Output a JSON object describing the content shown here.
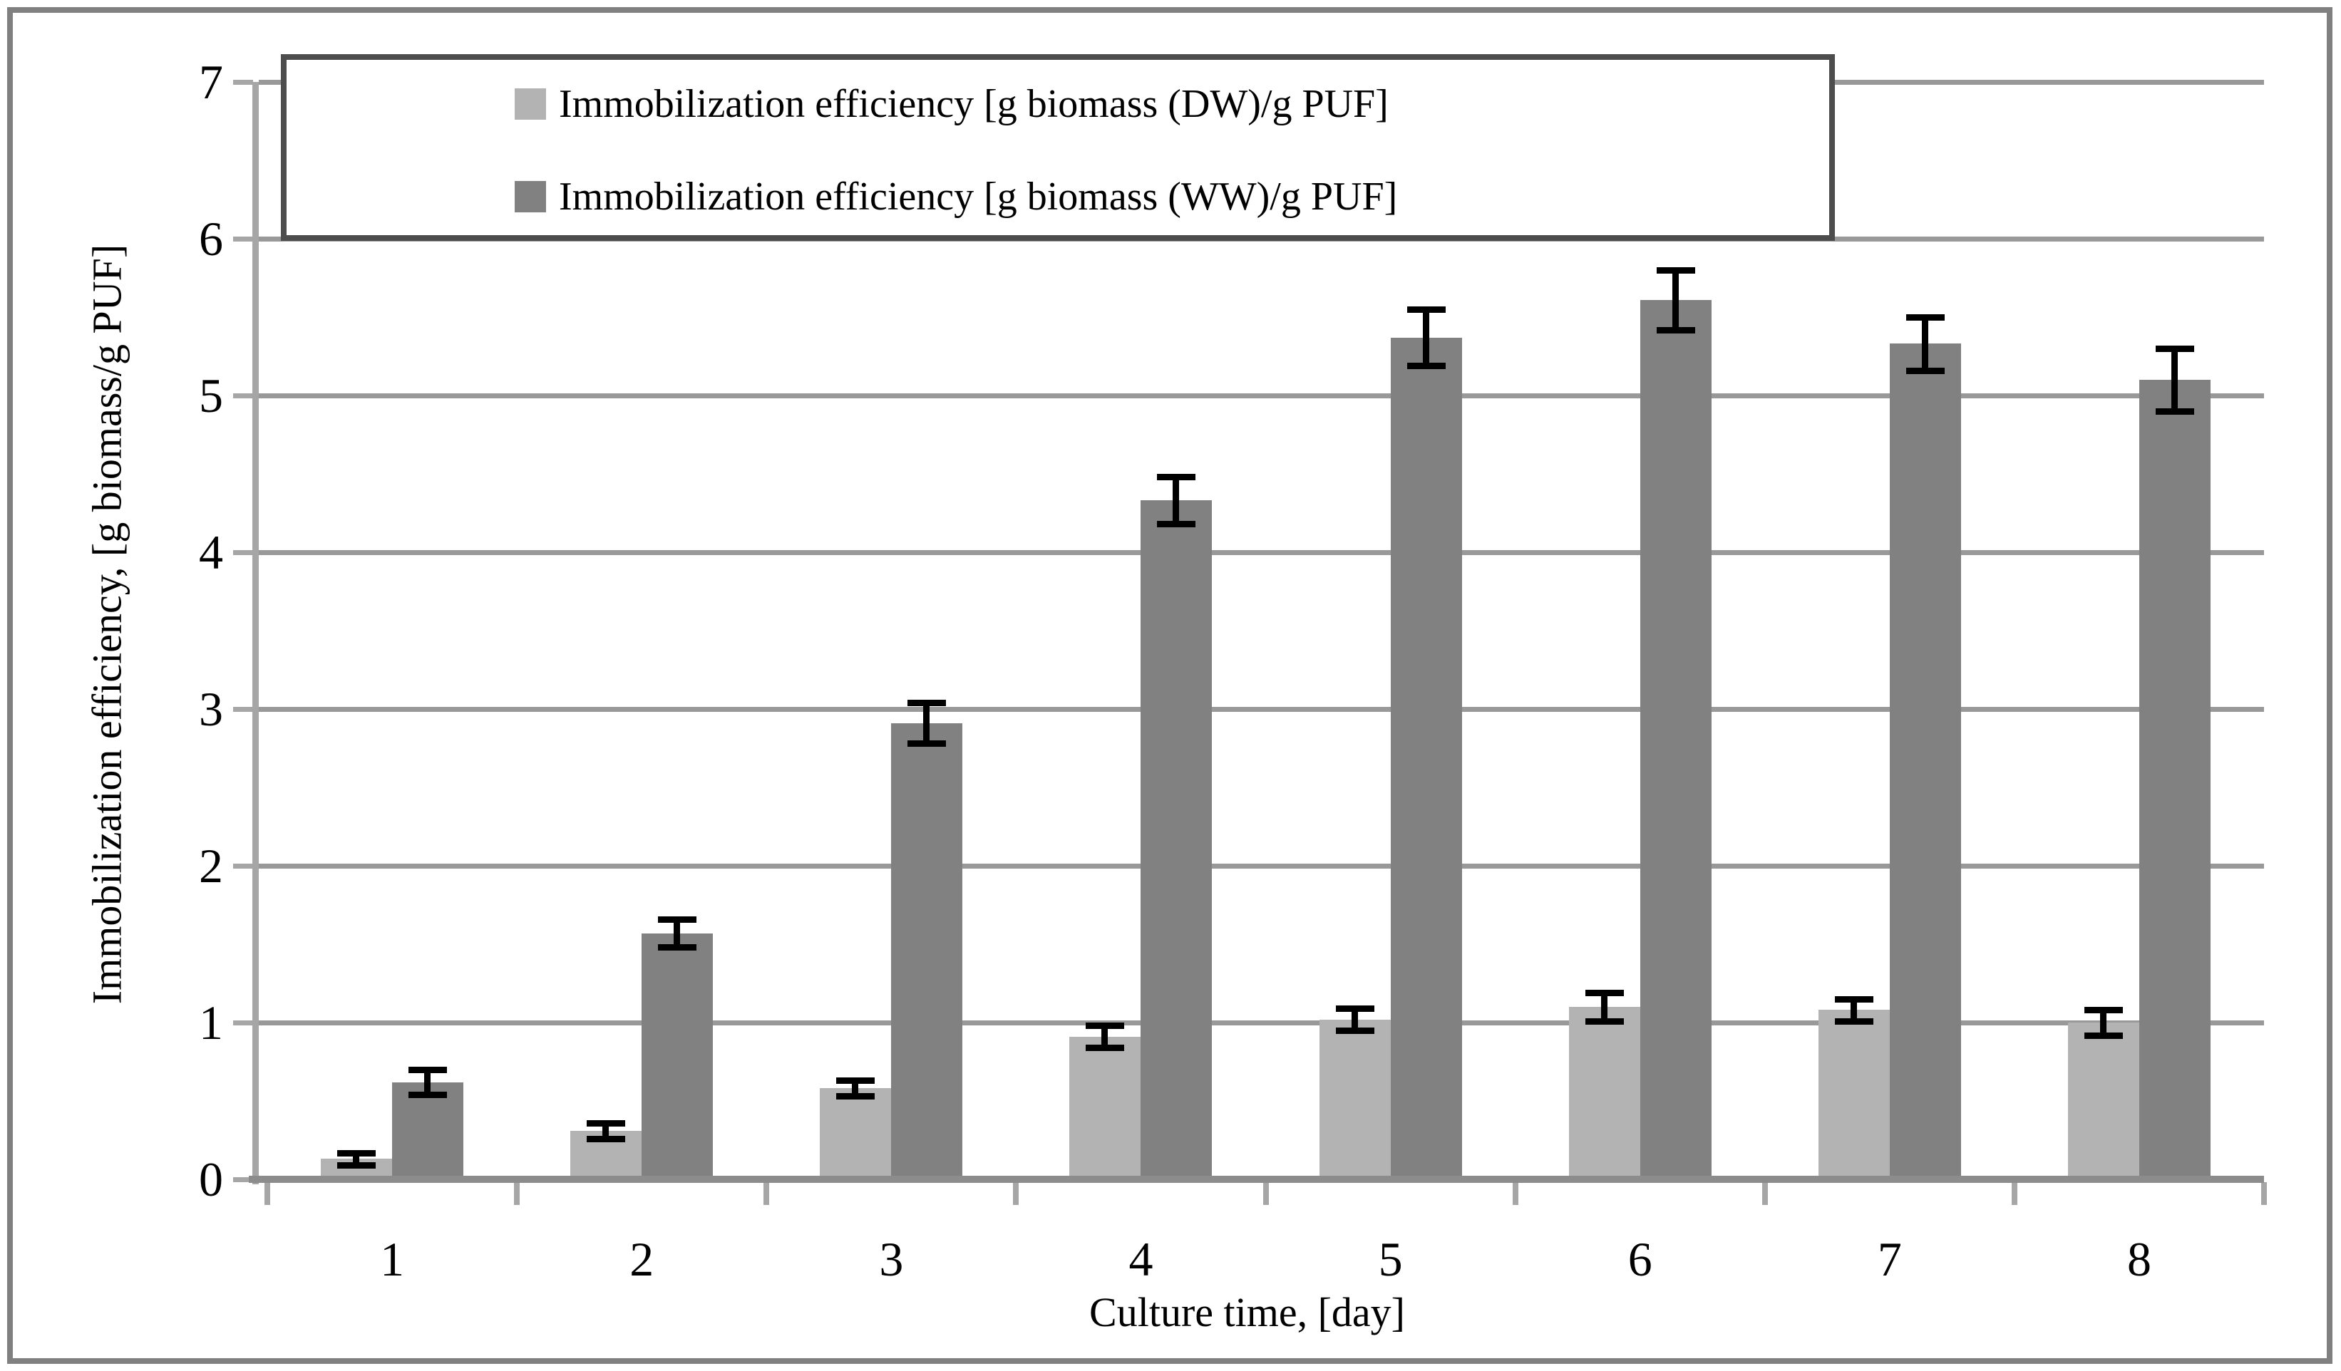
{
  "figure": {
    "background": "#ffffff",
    "frame_color": "#808080"
  },
  "chart_data": {
    "type": "bar",
    "title": "",
    "xlabel": "Culture time, [day]",
    "ylabel": "Immobilization efficiency, [g biomass/g PUF]",
    "categories": [
      "1",
      "2",
      "3",
      "4",
      "5",
      "6",
      "7",
      "8"
    ],
    "ylim": [
      0,
      7
    ],
    "yticks": [
      0,
      1,
      2,
      3,
      4,
      5,
      6,
      7
    ],
    "grid": true,
    "legend_position": "top-inside",
    "series": [
      {
        "name": "Immobilization efficiency [g biomass (DW)/g PUF]",
        "color": "#b3b3b3",
        "values": [
          0.13,
          0.31,
          0.58,
          0.91,
          1.02,
          1.1,
          1.08,
          1.0
        ],
        "errors": [
          0.04,
          0.05,
          0.05,
          0.07,
          0.07,
          0.09,
          0.07,
          0.08
        ]
      },
      {
        "name": "Immobilization efficiency [g biomass (WW)/g PUF]",
        "color": "#818181",
        "values": [
          0.62,
          1.57,
          2.91,
          4.33,
          5.37,
          5.61,
          5.33,
          5.1
        ],
        "errors": [
          0.08,
          0.09,
          0.13,
          0.15,
          0.18,
          0.19,
          0.17,
          0.2
        ]
      }
    ],
    "error_bar_color": "#000000",
    "gridline_color": "#999999",
    "axis_color": "#a6a6a6",
    "baseline_color": "#8c8c8c",
    "legend_border_color": "#4d4d4d"
  }
}
